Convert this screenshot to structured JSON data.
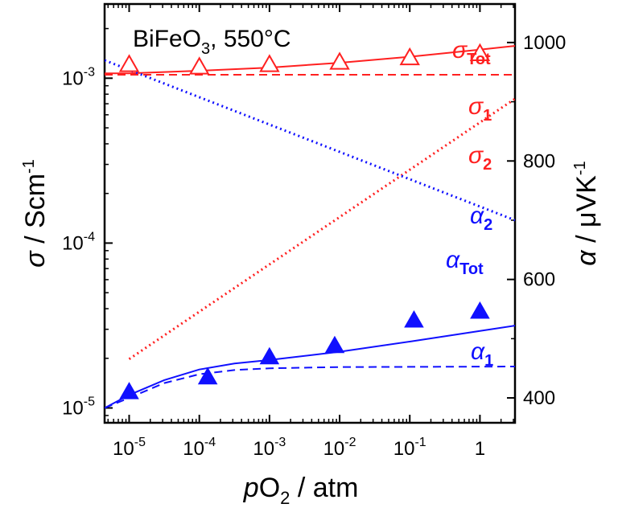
{
  "chart_data": {
    "type": "scatter",
    "title": "",
    "sample_label": {
      "base": "BiFeO",
      "sub": "3",
      "rest": ", 550°C"
    },
    "x_axis": {
      "label_prefix": "p",
      "label_main": "O",
      "label_sub": "2",
      "label_suffix": " / atm",
      "scale": "log",
      "range": [
        -5.35,
        0.5
      ],
      "ticks": [
        {
          "v": -5,
          "base": "10",
          "exp": "-5"
        },
        {
          "v": -4,
          "base": "10",
          "exp": "-4"
        },
        {
          "v": -3,
          "base": "10",
          "exp": "-3"
        },
        {
          "v": -2,
          "base": "10",
          "exp": "-2"
        },
        {
          "v": -1,
          "base": "10",
          "exp": "-1"
        },
        {
          "v": 0,
          "base": "1",
          "exp": ""
        }
      ]
    },
    "y_left": {
      "label_symbol": "σ",
      "label_text": " / Scm",
      "label_exp": "-1",
      "scale": "log",
      "range": [
        -5.09,
        -2.55
      ],
      "ticks": [
        {
          "v": -5,
          "base": "10",
          "exp": "-5"
        },
        {
          "v": -4,
          "base": "10",
          "exp": "-4"
        },
        {
          "v": -3,
          "base": "10",
          "exp": "-3"
        }
      ]
    },
    "y_right": {
      "label_symbol": "α",
      "label_text": " / μVK",
      "label_exp": "-1",
      "scale": "linear",
      "range": [
        358,
        1065
      ],
      "ticks": [
        400,
        600,
        800,
        1000
      ]
    },
    "series": [
      {
        "name": "σ_Tot measured",
        "axis": "left",
        "marker": "open-triangle",
        "color": "#ff2020",
        "x": [
          -5,
          -4,
          -3,
          -2,
          -1,
          0
        ],
        "y": [
          0.00121,
          0.00117,
          0.00121,
          0.00125,
          0.00133,
          0.00141
        ]
      },
      {
        "name": "α_Tot measured",
        "axis": "right",
        "marker": "filled-triangle",
        "color": "#1010ff",
        "x": [
          -5,
          -3.88,
          -3,
          -2.07,
          -0.94,
          0
        ],
        "y": [
          410,
          435,
          469,
          488,
          531,
          546
        ]
      },
      {
        "name": "σ_Tot fit",
        "axis": "left",
        "style": "solid",
        "color": "#ff2020",
        "x": [
          -5.35,
          -5,
          -4,
          -3,
          -2,
          -1,
          0,
          0.5
        ],
        "y": [
          0.00107,
          0.00107,
          0.00111,
          0.00116,
          0.00124,
          0.00135,
          0.00149,
          0.00157
        ]
      },
      {
        "name": "σ_1",
        "axis": "left",
        "style": "dashed",
        "color": "#ff2020",
        "x": [
          -5.35,
          0.5
        ],
        "y": [
          0.00105,
          0.00105
        ]
      },
      {
        "name": "σ_2",
        "axis": "left",
        "style": "dotted",
        "color": "#ff2020",
        "x": [
          -5,
          0.5
        ],
        "y": [
          1.98e-05,
          0.00075
        ]
      },
      {
        "name": "α_2",
        "axis": "right",
        "style": "dotted",
        "color": "#1010ff",
        "x": [
          -5.35,
          0.5
        ],
        "y": [
          970,
          700
        ]
      },
      {
        "name": "α_Tot fit",
        "axis": "right",
        "style": "solid",
        "color": "#1010ff",
        "x": [
          -5.35,
          -5,
          -4.5,
          -4,
          -3.5,
          -3,
          -2,
          -1,
          0,
          0.5
        ],
        "y": [
          383,
          405,
          430,
          448,
          458,
          464,
          478,
          495,
          513,
          522
        ]
      },
      {
        "name": "α_1",
        "axis": "right",
        "style": "dashed",
        "color": "#1010ff",
        "x": [
          -5.35,
          -5,
          -4.5,
          -4,
          -3.5,
          -3,
          -2,
          0.5
        ],
        "y": [
          383,
          400,
          425,
          440,
          447,
          450,
          452,
          453
        ]
      }
    ],
    "annotations": [
      {
        "id": "sigma-tot",
        "sym": "σ",
        "sub": "Tot",
        "color": "#ff2020"
      },
      {
        "id": "sigma-1",
        "sym": "σ",
        "sub": "1",
        "color": "#ff2020"
      },
      {
        "id": "sigma-2",
        "sym": "σ",
        "sub": "2",
        "color": "#ff2020"
      },
      {
        "id": "alpha-2",
        "sym": "α",
        "sub": "2",
        "color": "#1010ff"
      },
      {
        "id": "alpha-tot",
        "sym": "α",
        "sub": "Tot",
        "color": "#1010ff"
      },
      {
        "id": "alpha-1",
        "sym": "α",
        "sub": "1",
        "color": "#1010ff"
      }
    ],
    "grid": false,
    "legend": "none"
  }
}
